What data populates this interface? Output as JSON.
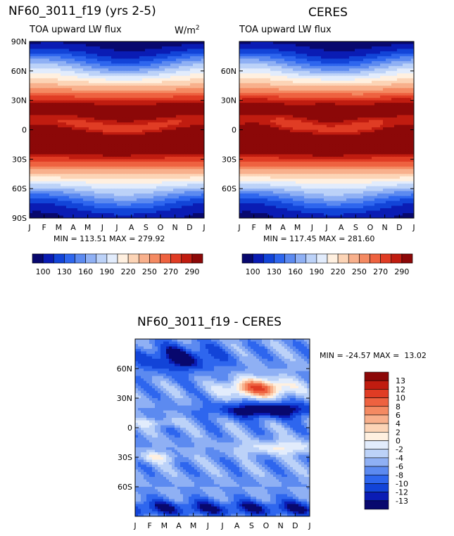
{
  "colors": {
    "lw_palette": [
      "#08086e",
      "#0a1cb4",
      "#1244d8",
      "#2e66ee",
      "#5c8af0",
      "#8fb0f4",
      "#bcd2f8",
      "#e2ecfc",
      "#fff0e0",
      "#fcd4b6",
      "#f8b08c",
      "#f48a62",
      "#ee6240",
      "#e03c24",
      "#c01c10",
      "#8c0808"
    ],
    "diff_palette": [
      "#08086e",
      "#0a1cb4",
      "#1244d8",
      "#2e66ee",
      "#5c8af0",
      "#8fb0f4",
      "#bcd2f8",
      "#e2ecfc",
      "#fff0e0",
      "#fcd4b6",
      "#f8b08c",
      "#f48a62",
      "#ee6240",
      "#e03c24",
      "#c01c10",
      "#8c0808"
    ]
  },
  "chart_data": [
    {
      "id": "model",
      "type": "heatmap",
      "title": "NF60_3011_f19 (yrs 2-5)",
      "left_label": "TOA upward LW flux",
      "right_label": "W/m",
      "right_label_sup": "2",
      "x_tick_labels": [
        "J",
        "F",
        "M",
        "A",
        "M",
        "J",
        "J",
        "A",
        "S",
        "O",
        "N",
        "D",
        "J"
      ],
      "y_tick_labels": [
        "90N",
        "60N",
        "30N",
        "0",
        "30S",
        "60S",
        "90S"
      ],
      "y_tick_values": [
        90,
        60,
        30,
        0,
        -30,
        -60,
        -90
      ],
      "ylim": [
        -90,
        90
      ],
      "stats": "MIN = 113.51 MAX = 279.92",
      "colorbar_labels": [
        "100",
        "130",
        "160",
        "190",
        "220",
        "250",
        "270",
        "290"
      ],
      "colorbar_levels": [
        100,
        110,
        120,
        130,
        140,
        150,
        160,
        170,
        180,
        190,
        200,
        210,
        220,
        230,
        240,
        250,
        260,
        270,
        280,
        290
      ]
    },
    {
      "id": "obs",
      "type": "heatmap",
      "title": "CERES",
      "left_label": "TOA upward LW flux",
      "x_tick_labels": [
        "J",
        "F",
        "M",
        "A",
        "M",
        "J",
        "J",
        "A",
        "S",
        "O",
        "N",
        "D",
        "J"
      ],
      "y_tick_labels": [
        "60N",
        "30N",
        "0",
        "30S",
        "60S"
      ],
      "y_tick_values": [
        60,
        30,
        0,
        -30,
        -60
      ],
      "ylim": [
        -90,
        90
      ],
      "stats": "MIN = 117.45 MAX = 281.60",
      "colorbar_labels": [
        "100",
        "130",
        "160",
        "190",
        "220",
        "250",
        "270",
        "290"
      ]
    },
    {
      "id": "diff",
      "type": "heatmap",
      "title": "NF60_3011_f19 - CERES",
      "x_tick_labels": [
        "J",
        "F",
        "M",
        "A",
        "M",
        "J",
        "J",
        "A",
        "S",
        "O",
        "N",
        "D",
        "J"
      ],
      "y_tick_labels": [
        "60N",
        "30N",
        "0",
        "30S",
        "60S"
      ],
      "y_tick_values": [
        60,
        30,
        0,
        -30,
        -60
      ],
      "ylim": [
        -90,
        90
      ],
      "stats": "MIN = -24.57 MAX =  13.02",
      "colorbar_labels": [
        "13",
        "12",
        "10",
        "8",
        "6",
        "4",
        "2",
        "0",
        "-2",
        "-4",
        "-6",
        "-8",
        "-10",
        "-12",
        "-13"
      ]
    }
  ]
}
